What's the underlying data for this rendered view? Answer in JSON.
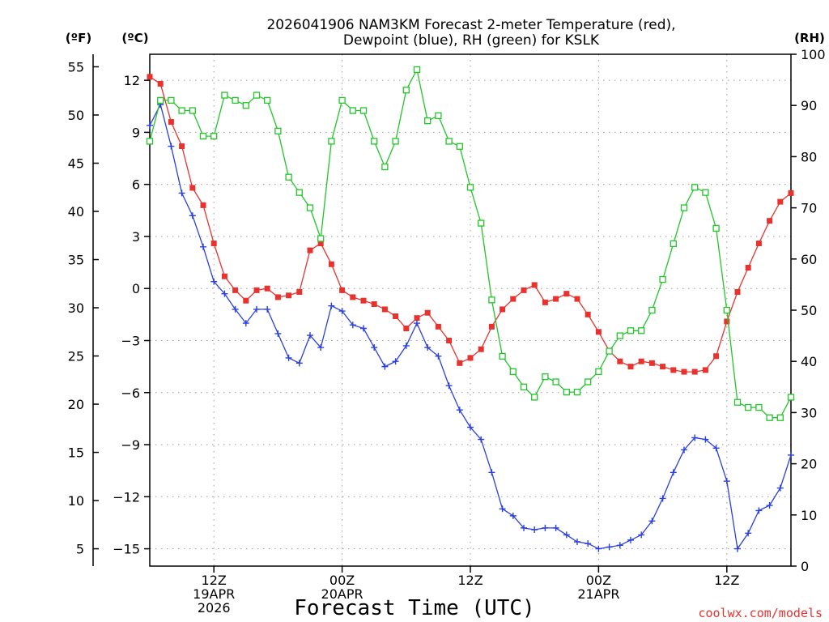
{
  "chart_data": {
    "type": "line",
    "title_line1": "2026041906 NAM3KM Forecast 2-meter Temperature (red),",
    "title_line2": "Dewpoint (blue), RH (green) for KSLK",
    "xlabel": "Forecast Time (UTC)",
    "watermark": "coolwx.com/models",
    "unit_labels": {
      "fahrenheit": "(ºF)",
      "celsius": "(ºC)",
      "rh": "(RH)"
    },
    "x_range": [
      0,
      60
    ],
    "celsius_range": [
      -16,
      13.5
    ],
    "rh_range": [
      0,
      100
    ],
    "celsius_ticks": [
      12,
      9,
      6,
      3,
      0,
      -3,
      -6,
      -9,
      -12,
      -15
    ],
    "celsius_tick_labels": [
      "12",
      "9",
      "6",
      "3",
      "0",
      "−3",
      "−6",
      "−9",
      "−12",
      "−15"
    ],
    "fahrenheit_ticks": [
      55,
      50,
      45,
      40,
      35,
      30,
      25,
      20,
      15,
      10,
      5
    ],
    "fahrenheit_tick_labels": [
      "55",
      "50",
      "45",
      "40",
      "35",
      "30",
      "25",
      "20",
      "15",
      "10",
      "5"
    ],
    "rh_ticks": [
      100,
      90,
      80,
      70,
      60,
      50,
      40,
      30,
      20,
      10,
      0
    ],
    "rh_tick_labels": [
      "100",
      "90",
      "80",
      "70",
      "60",
      "50",
      "40",
      "30",
      "20",
      "10",
      "0"
    ],
    "x_ticks": [
      {
        "x": 6,
        "lines": [
          "12Z",
          "19APR",
          "2026"
        ]
      },
      {
        "x": 18,
        "lines": [
          "00Z",
          "20APR"
        ]
      },
      {
        "x": 30,
        "lines": [
          "12Z"
        ]
      },
      {
        "x": 42,
        "lines": [
          "00Z",
          "21APR"
        ]
      },
      {
        "x": 54,
        "lines": [
          "12Z"
        ]
      }
    ],
    "series": [
      {
        "name": "2-meter Temperature",
        "axis": "celsius",
        "color": "#e8322e",
        "marker": "filled-square",
        "values": [
          12.2,
          11.8,
          9.6,
          8.2,
          5.8,
          4.8,
          2.6,
          0.7,
          -0.1,
          -0.7,
          -0.1,
          0.0,
          -0.5,
          -0.4,
          -0.2,
          2.2,
          2.6,
          1.4,
          -0.1,
          -0.5,
          -0.7,
          -0.9,
          -1.2,
          -1.6,
          -2.3,
          -1.7,
          -1.4,
          -2.2,
          -3.0,
          -4.3,
          -4.0,
          -3.5,
          -2.2,
          -1.2,
          -0.6,
          -0.1,
          0.2,
          -0.8,
          -0.6,
          -0.3,
          -0.6,
          -1.5,
          -2.5,
          -3.6,
          -4.2,
          -4.5,
          -4.2,
          -4.3,
          -4.5,
          -4.7,
          -4.8,
          -4.8,
          -4.7,
          -3.9,
          -1.9,
          -0.2,
          1.2,
          2.6,
          3.9,
          5.0,
          5.5
        ]
      },
      {
        "name": "Dewpoint",
        "axis": "celsius",
        "color": "#2a3fe0",
        "marker": "plus",
        "values": [
          9.4,
          10.6,
          8.2,
          5.5,
          4.2,
          2.4,
          0.4,
          -0.3,
          -1.2,
          -2.0,
          -1.2,
          -1.2,
          -2.6,
          -4.0,
          -4.3,
          -2.7,
          -3.4,
          -1.0,
          -1.3,
          -2.1,
          -2.3,
          -3.4,
          -4.5,
          -4.2,
          -3.3,
          -2.0,
          -3.4,
          -3.9,
          -5.6,
          -7.0,
          -8.0,
          -8.7,
          -10.6,
          -12.7,
          -13.1,
          -13.8,
          -13.9,
          -13.8,
          -13.8,
          -14.2,
          -14.6,
          -14.7,
          -15.0,
          -14.9,
          -14.8,
          -14.5,
          -14.2,
          -13.4,
          -12.1,
          -10.6,
          -9.3,
          -8.6,
          -8.7,
          -9.2,
          -11.1,
          -15.0,
          -14.1,
          -12.8,
          -12.5,
          -11.5,
          -9.6
        ]
      },
      {
        "name": "RH",
        "axis": "rh",
        "color": "#22c52a",
        "marker": "hollow-square",
        "values": [
          83,
          91,
          91,
          89,
          89,
          84,
          84,
          92,
          91,
          90,
          92,
          91,
          85,
          76,
          73,
          70,
          64,
          83,
          91,
          89,
          89,
          83,
          78,
          83,
          93,
          97,
          87,
          88,
          83,
          82,
          74,
          67,
          52,
          41,
          38,
          35,
          33,
          37,
          36,
          34,
          34,
          36,
          38,
          42,
          45,
          46,
          46,
          50,
          56,
          63,
          70,
          74,
          73,
          66,
          50,
          32,
          31,
          31,
          29,
          29,
          33
        ]
      }
    ]
  }
}
